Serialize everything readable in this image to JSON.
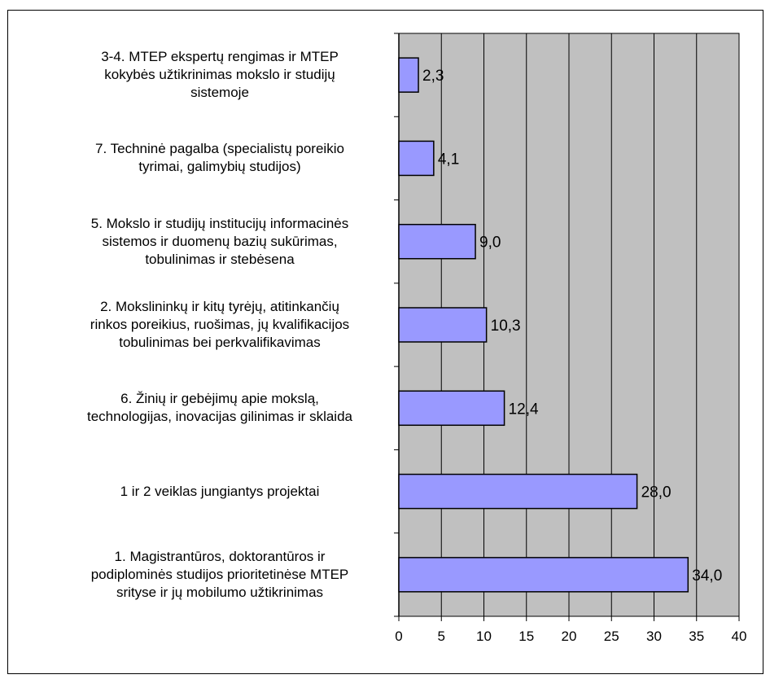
{
  "colors": {
    "plot_bg": "#c0c0c0",
    "bar_fill": "#9999ff",
    "bar_stroke": "#000000",
    "grid": "#000000",
    "text": "#000000"
  },
  "chart_data": {
    "type": "bar",
    "orientation": "horizontal",
    "xlim": [
      0,
      40
    ],
    "x_ticks": [
      "0",
      "5",
      "10",
      "15",
      "20",
      "25",
      "30",
      "35",
      "40"
    ],
    "grid": true,
    "categories": [
      [
        "3-4. MTEP ekspertų rengimas ir MTEP",
        "kokybės užtikrinimas mokslo ir studijų",
        "sistemoje"
      ],
      [
        "7. Techninė pagalba (specialistų poreikio",
        "tyrimai, galimybių studijos)"
      ],
      [
        "5. Mokslo ir studijų institucijų informacinės",
        "sistemos ir duomenų bazių sukūrimas,",
        "tobulinimas ir stebėsena"
      ],
      [
        "2. Mokslininkų ir kitų tyrėjų, atitinkančių",
        "rinkos poreikius, ruošimas, jų kvalifikacijos",
        "tobulinimas bei perkvalifikavimas"
      ],
      [
        "6. Žinių ir gebėjimų apie mokslą,",
        "technologijas, inovacijas gilinimas ir sklaida"
      ],
      [
        "1 ir 2 veiklas jungiantys projektai"
      ],
      [
        "1. Magistrantūros, doktorantūros ir",
        "podiplominės studijos prioritetinėse MTEP",
        "srityse ir jų mobilumo užtikrinimas"
      ]
    ],
    "values": [
      2.3,
      4.1,
      9.0,
      10.3,
      12.4,
      28.0,
      34.0
    ],
    "value_labels": [
      "2,3",
      "4,1",
      "9,0",
      "10,3",
      "12,4",
      "28,0",
      "34,0"
    ]
  }
}
